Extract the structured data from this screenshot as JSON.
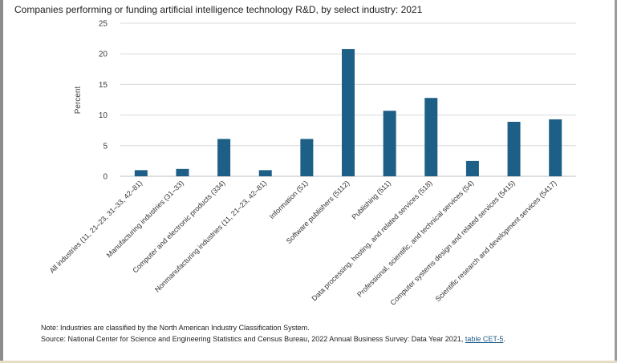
{
  "chart_data": {
    "type": "bar",
    "title": "Companies performing or funding artificial intelligence technology R&D, by select industry: 2021",
    "xlabel": "",
    "ylabel": "Percent",
    "ylim": [
      0,
      25
    ],
    "yticks": [
      0,
      5,
      10,
      15,
      20,
      25
    ],
    "grid": true,
    "legend": "none",
    "bar_color": "#1d5f86",
    "categories": [
      "All industries (11, 21–23, 31–33, 42–81)",
      "Manufacturing industries (31–33)",
      "Computer and electronic products (334)",
      "Nonmanufacturing industries (11, 21–23, 42–81)",
      "Information (51)",
      "Software publishers (5112)",
      "Publishing (511)",
      "Data processing, hosting, and related services (518)",
      "Professional, scientific, and technical services (54)",
      "Computer systems design and related services (5415)",
      "Scientific research and development services (5417)"
    ],
    "values": [
      1.0,
      1.2,
      6.1,
      1.0,
      6.1,
      20.8,
      10.7,
      12.8,
      2.5,
      8.9,
      9.3
    ]
  },
  "note": {
    "text": "Note: Industries are classified by the North American Industry Classification System."
  },
  "source": {
    "prefix": "Source: National Center for Science and Engineering Statistics and Census Bureau, 2022 Annual Business Survey: Data Year 2021, ",
    "link": "table CET-5",
    "suffix": "."
  },
  "colors": {
    "bar": "#1d5f86",
    "grid": "#d9d9d9",
    "link": "#1f5b8a"
  }
}
